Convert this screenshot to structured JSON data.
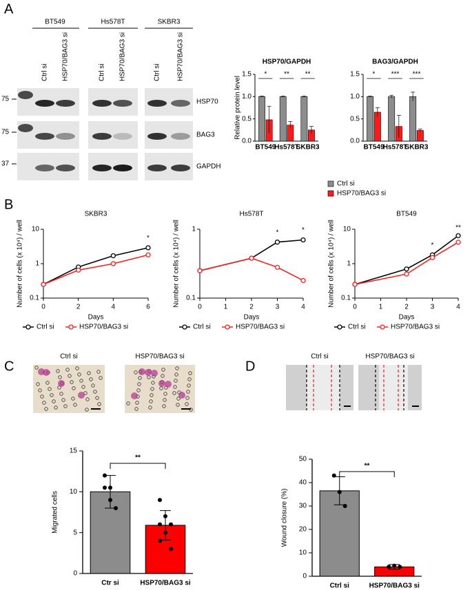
{
  "figure": {
    "panel_labels": [
      "A",
      "B",
      "C",
      "D"
    ],
    "blot": {
      "cell_lines": [
        "BT549",
        "Hs578T",
        "SKBR3"
      ],
      "lanes": [
        "Ctrl si",
        "HSP70/BAG3 si",
        "Ctrl si",
        "HSP70/BAG3 si",
        "Ctrl si",
        "HSP70/BAG3 si"
      ],
      "markers": [
        "75",
        "75",
        "37"
      ],
      "proteins": [
        "HSP70",
        "BAG3",
        "GAPDH"
      ]
    },
    "images_c": [
      "Ctrl si",
      "HSP70/BAG3 si"
    ],
    "images_d": [
      "Ctrl si",
      "HSP70/BAG3 si"
    ]
  },
  "chart_data": [
    {
      "type": "bar",
      "title": "HSP70/GAPDH",
      "y_label": "Relative protein level",
      "categories": [
        "BT549",
        "Hs578T",
        "SKBR3"
      ],
      "series": [
        {
          "name": "Ctrl si",
          "color": "#8c8c8c",
          "values": [
            1.0,
            1.0,
            1.0
          ],
          "errors": [
            0.01,
            0.01,
            0.01
          ]
        },
        {
          "name": "HSP70/BAG3 si",
          "color": "#ff1a1a",
          "values": [
            0.48,
            0.36,
            0.25
          ],
          "errors": [
            0.3,
            0.08,
            0.08
          ]
        }
      ],
      "annotations": [
        "*",
        "**",
        "**"
      ],
      "ylim": [
        0,
        1.5
      ],
      "yticks": [
        {
          "value": 0,
          "label": "0.0"
        },
        {
          "value": 0.5,
          "label": "0.5"
        },
        {
          "value": 1,
          "label": "1.0"
        },
        {
          "value": 1.5,
          "label": "1.5"
        }
      ]
    },
    {
      "type": "bar",
      "title": "BAG3/GAPDH",
      "categories": [
        "BT549",
        "Hs578T",
        "SKBR3"
      ],
      "series": [
        {
          "color": "#8c8c8c",
          "values": [
            1.0,
            1.0,
            1.0
          ],
          "errors": [
            0.01,
            0.03,
            0.1
          ]
        },
        {
          "color": "#ff1a1a",
          "values": [
            0.65,
            0.33,
            0.24
          ],
          "errors": [
            0.1,
            0.25,
            0.03
          ]
        }
      ],
      "annotations": [
        "*",
        "***",
        "***"
      ],
      "ylim": [
        0,
        1.5
      ],
      "yticks": [
        {
          "value": 0,
          "label": "0.0"
        },
        {
          "value": 0.5,
          "label": "0.5"
        },
        {
          "value": 1,
          "label": "1.0"
        },
        {
          "value": 1.5,
          "label": "1.5"
        }
      ]
    },
    {
      "type": "line",
      "title": "SKBR3",
      "x_label": "Days",
      "y_label": "Number of cells (x 10⁴) / well",
      "log_y": true,
      "x": [
        0,
        2,
        4,
        6
      ],
      "series": [
        {
          "name": "Ctrl si",
          "color": "#000000",
          "values": [
            0.25,
            0.8,
            1.7,
            2.9
          ]
        },
        {
          "name": "HSP70/BAG3 si",
          "color": "#ff2020",
          "values": [
            0.25,
            0.65,
            1.0,
            1.8
          ]
        }
      ],
      "annotations": [
        {
          "x": 6,
          "text": "*"
        }
      ],
      "xlim": [
        0,
        6
      ],
      "xticks": [
        0,
        2,
        4,
        6
      ],
      "ylim": [
        0.1,
        10
      ],
      "yticks": [
        0.1,
        1,
        10
      ]
    },
    {
      "type": "line",
      "title": "Hs578T",
      "x_label": "Days",
      "y_label": "Number of cells (x 10⁴) / well",
      "log_y": true,
      "x": [
        0,
        2,
        3,
        4
      ],
      "series": [
        {
          "name": "Ctrl si",
          "color": "#000000",
          "values": [
            0.25,
            0.38,
            0.65,
            0.7
          ]
        },
        {
          "name": "HSP70/BAG3 si",
          "color": "#ff2020",
          "values": [
            0.25,
            0.38,
            0.28,
            0.18
          ]
        }
      ],
      "annotations": [
        {
          "x": 3,
          "text": "*"
        },
        {
          "x": 4,
          "text": "*"
        }
      ],
      "xlim": [
        0,
        4
      ],
      "xticks": [
        0,
        1,
        2,
        3,
        4
      ],
      "ylim": [
        0.1,
        1
      ],
      "yticks": [
        0.1,
        1
      ]
    },
    {
      "type": "line",
      "title": "BT549",
      "x_label": "Days",
      "y_label": "Number of cells (x 10⁴) / well",
      "log_y": true,
      "x": [
        0,
        2,
        3,
        4
      ],
      "series": [
        {
          "name": "Ctrl si",
          "color": "#000000",
          "values": [
            0.25,
            0.7,
            1.8,
            6.5
          ]
        },
        {
          "name": "HSP70/BAG3 si",
          "color": "#ff2020",
          "values": [
            0.25,
            0.5,
            1.5,
            4.2
          ]
        }
      ],
      "annotations": [
        {
          "x": 3,
          "text": "*"
        },
        {
          "x": 4,
          "text": "**"
        }
      ],
      "xlim": [
        0,
        4
      ],
      "xticks": [
        0,
        1,
        2,
        3,
        4
      ],
      "ylim": [
        0.1,
        10
      ],
      "yticks": [
        0.1,
        1,
        10
      ]
    },
    {
      "type": "simplebar",
      "y_label": "Migrated cells",
      "categories": [
        "Ctr si",
        "HSP70/BAG3 si"
      ],
      "values": [
        10,
        5.9
      ],
      "errors": [
        2,
        1.8
      ],
      "colors": [
        "#8c8c8c",
        "#ff0000"
      ],
      "points": [
        [
          12,
          10.5,
          8,
          10.5,
          9
        ],
        [
          9,
          7,
          6,
          4,
          5,
          3,
          6
        ]
      ],
      "annotation": "**",
      "ylim": [
        0,
        15
      ],
      "yticks": [
        0,
        5,
        10,
        15
      ]
    },
    {
      "type": "simplebar",
      "y_label": "Wound closure (%)",
      "categories": [
        "Ctrl si",
        "HSP70/BAG3 si"
      ],
      "values": [
        36.5,
        4
      ],
      "errors": [
        6,
        1
      ],
      "colors": [
        "#8c8c8c",
        "#ff0000"
      ],
      "points": [
        [
          43,
          36,
          30
        ],
        [
          4,
          4.5,
          4
        ]
      ],
      "annotation": "**",
      "ylim": [
        0,
        50
      ],
      "yticks": [
        0,
        10,
        20,
        30,
        40,
        50
      ]
    }
  ]
}
